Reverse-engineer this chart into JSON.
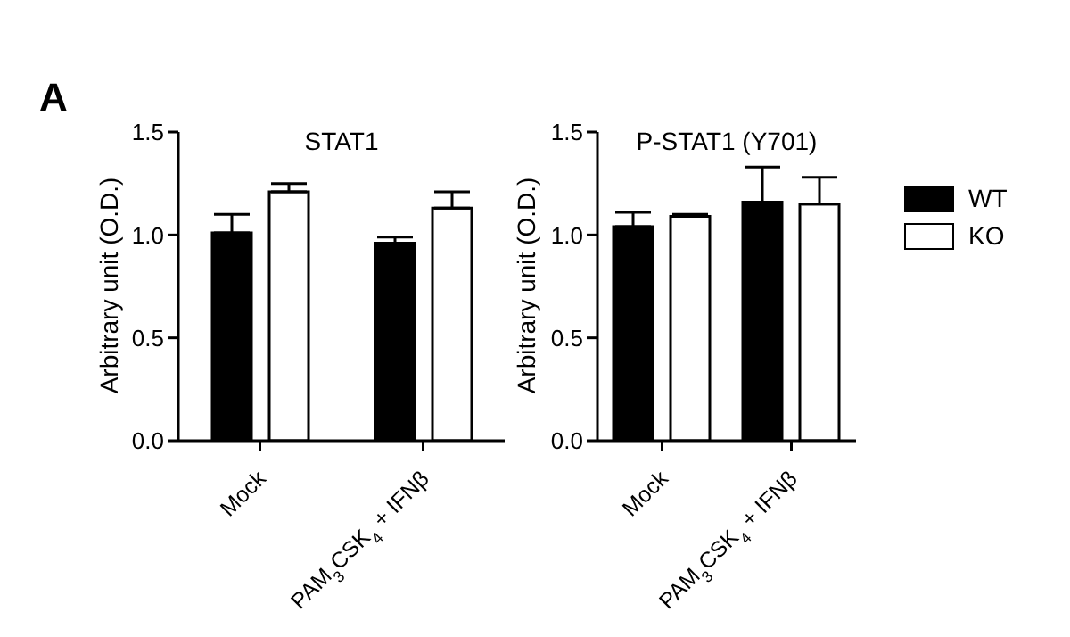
{
  "chart_data": [
    {
      "type": "bar",
      "title": "STAT1",
      "ylabel": "Arbitrary unit (O.D.)",
      "annotations": [
        "A"
      ],
      "categories": [
        "Mock",
        "PAM$_{3}$CSK$_{4}$ + IFNβ"
      ],
      "series": [
        {
          "color": "#000000",
          "values": [
            1.01,
            0.96
          ],
          "errors": [
            0.09,
            0.03
          ]
        },
        {
          "color": "#ffffff",
          "values": [
            1.21,
            1.13
          ],
          "errors": [
            0.04,
            0.08
          ]
        }
      ],
      "ylim": [
        0,
        1.5
      ],
      "yticks": [
        {
          "value": 0,
          "label": "0.0"
        },
        {
          "value": 0.5,
          "label": "0.5"
        },
        {
          "value": 1,
          "label": "1.0"
        },
        {
          "value": 1.5,
          "label": "1.5"
        }
      ],
      "grid": false,
      "legend": false
    },
    {
      "type": "bar",
      "title": "P-STAT1 (Y701)",
      "ylabel": "Arbitrary unit (O.D.)",
      "categories": [
        "Mock",
        "PAM$_{3}$CSK$_{4}$ + IFNβ"
      ],
      "series": [
        {
          "name": "WT",
          "color": "#000000",
          "values": [
            1.04,
            1.16
          ],
          "errors": [
            0.07,
            0.17
          ]
        },
        {
          "name": "KO",
          "color": "#ffffff",
          "values": [
            1.09,
            1.15
          ],
          "errors": [
            0.01,
            0.13
          ]
        }
      ],
      "ylim": [
        0,
        1.5
      ],
      "yticks": [
        {
          "value": 0,
          "label": "0.0"
        },
        {
          "value": 0.5,
          "label": "0.5"
        },
        {
          "value": 1,
          "label": "1.0"
        },
        {
          "value": 1.5,
          "label": "1.5"
        }
      ],
      "grid": false,
      "legend": "right"
    }
  ]
}
